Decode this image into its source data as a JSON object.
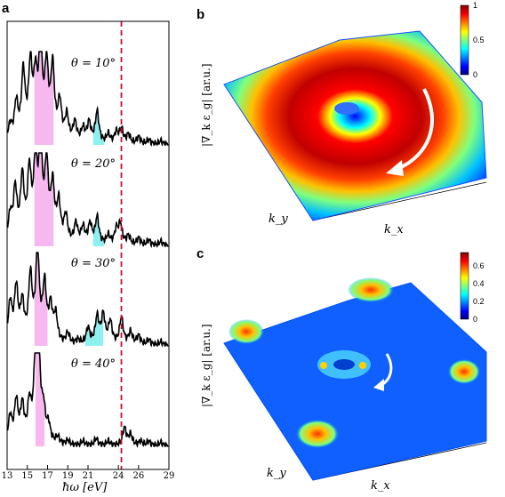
{
  "panels": {
    "a": "a",
    "b": "b",
    "c": "c"
  },
  "chart_data": [
    {
      "type": "line",
      "panel": "a",
      "xlabel": "ħω [eV]",
      "xlim": [
        13,
        29
      ],
      "xticks": [
        13,
        15,
        17,
        19,
        21,
        24,
        26,
        29
      ],
      "xtick_labels": [
        "13",
        "15",
        "17",
        "19",
        "21",
        "24",
        "26",
        "29"
      ],
      "vertical_line": {
        "x": 24.3,
        "style": "dashed",
        "color": "#c8102e"
      },
      "series": [
        {
          "name": "θ = 10°",
          "label": "θ = 10°",
          "shaded_regions": [
            {
              "x0": 15.7,
              "x1": 17.6,
              "color": "#f7b8f0"
            },
            {
              "x0": 21.5,
              "x1": 22.6,
              "color": "#8ff0f0"
            }
          ],
          "peaks": [
            [
              13.3,
              0.18
            ],
            [
              13.9,
              0.42
            ],
            [
              14.6,
              0.75
            ],
            [
              15.3,
              0.8
            ],
            [
              15.8,
              0.62
            ],
            [
              16.3,
              1.0
            ],
            [
              16.9,
              0.78
            ],
            [
              17.5,
              0.8
            ],
            [
              18.2,
              0.42
            ],
            [
              18.9,
              0.28
            ],
            [
              19.7,
              0.22
            ],
            [
              20.5,
              0.15
            ],
            [
              21.1,
              0.22
            ],
            [
              21.9,
              0.35
            ],
            [
              23.0,
              0.1
            ],
            [
              23.8,
              0.12
            ],
            [
              24.3,
              0.16
            ],
            [
              25.0,
              0.1
            ],
            [
              26.0,
              0.08
            ],
            [
              27.0,
              0.05
            ],
            [
              28.2,
              0.04
            ]
          ]
        },
        {
          "name": "θ = 20°",
          "label": "θ = 20°",
          "shaded_regions": [
            {
              "x0": 15.7,
              "x1": 17.6,
              "color": "#f7b8f0"
            },
            {
              "x0": 21.5,
              "x1": 22.6,
              "color": "#8ff0f0"
            }
          ],
          "peaks": [
            [
              13.3,
              0.3
            ],
            [
              13.8,
              0.58
            ],
            [
              14.5,
              0.7
            ],
            [
              15.2,
              0.75
            ],
            [
              15.8,
              0.82
            ],
            [
              16.3,
              1.0
            ],
            [
              16.9,
              0.82
            ],
            [
              17.5,
              0.6
            ],
            [
              18.1,
              0.42
            ],
            [
              18.8,
              0.3
            ],
            [
              19.8,
              0.22
            ],
            [
              20.5,
              0.18
            ],
            [
              21.2,
              0.22
            ],
            [
              21.9,
              0.3
            ],
            [
              23.0,
              0.1
            ],
            [
              23.8,
              0.16
            ],
            [
              24.2,
              0.22
            ],
            [
              25.0,
              0.1
            ],
            [
              26.0,
              0.08
            ],
            [
              27.0,
              0.06
            ],
            [
              28.2,
              0.05
            ]
          ]
        },
        {
          "name": "θ = 30°",
          "label": "θ = 30°",
          "shaded_regions": [
            {
              "x0": 15.7,
              "x1": 17.0,
              "color": "#f7b8f0"
            },
            {
              "x0": 20.7,
              "x1": 22.5,
              "color": "#8ff0f0"
            }
          ],
          "peaks": [
            [
              13.3,
              0.45
            ],
            [
              13.9,
              0.6
            ],
            [
              14.5,
              0.42
            ],
            [
              15.3,
              0.72
            ],
            [
              16.0,
              1.0
            ],
            [
              16.7,
              0.62
            ],
            [
              17.3,
              0.38
            ],
            [
              17.8,
              0.3
            ],
            [
              19.0,
              0.12
            ],
            [
              20.0,
              0.05
            ],
            [
              21.0,
              0.18
            ],
            [
              21.9,
              0.3
            ],
            [
              22.5,
              0.32
            ],
            [
              23.2,
              0.25
            ],
            [
              24.3,
              0.3
            ],
            [
              25.2,
              0.14
            ],
            [
              26.0,
              0.1
            ],
            [
              27.0,
              0.06
            ],
            [
              28.2,
              0.04
            ]
          ]
        },
        {
          "name": "θ = 40°",
          "label": "θ = 40°",
          "shaded_regions": [
            {
              "x0": 15.8,
              "x1": 16.7,
              "color": "#f7b8f0"
            }
          ],
          "peaks": [
            [
              13.3,
              0.3
            ],
            [
              13.9,
              0.46
            ],
            [
              14.5,
              0.4
            ],
            [
              15.2,
              0.4
            ],
            [
              15.8,
              0.75
            ],
            [
              16.1,
              1.0
            ],
            [
              16.6,
              0.32
            ],
            [
              17.1,
              0.18
            ],
            [
              18.0,
              0.08
            ],
            [
              19.0,
              0.05
            ],
            [
              20.5,
              0.05
            ],
            [
              21.8,
              0.08
            ],
            [
              23.0,
              0.05
            ],
            [
              24.6,
              0.2
            ],
            [
              25.2,
              0.12
            ],
            [
              26.2,
              0.05
            ],
            [
              27.0,
              0.05
            ],
            [
              28.2,
              0.04
            ]
          ]
        }
      ]
    },
    {
      "type": "surface",
      "panel": "b",
      "zlabel": "|∇_k ε_g| [ar.u.]",
      "xlabel": "k_x",
      "ylabel": "k_y",
      "colorbar": {
        "min": 0,
        "max": 1,
        "ticks": [
          0,
          0.5,
          1
        ],
        "tick_labels": [
          "0",
          "0.5",
          "1"
        ]
      },
      "colormap": "jet"
    },
    {
      "type": "surface",
      "panel": "c",
      "zlabel": "|∇_k ε_g| [ar.u.]",
      "xlabel": "k_x",
      "ylabel": "k_y",
      "colorbar": {
        "min": 0,
        "max": 0.75,
        "ticks": [
          0,
          0.2,
          0.4,
          0.6
        ],
        "tick_labels": [
          "0",
          "0.2",
          "0.4",
          "0.6"
        ]
      },
      "colormap": "jet"
    }
  ],
  "colors": {
    "jet": [
      "#00007f",
      "#0000ff",
      "#007fff",
      "#00ffff",
      "#7fff7f",
      "#ffff00",
      "#ff7f00",
      "#ff0000",
      "#7f0000"
    ],
    "curve": "#000000",
    "dashed_line": "#c8102e"
  }
}
